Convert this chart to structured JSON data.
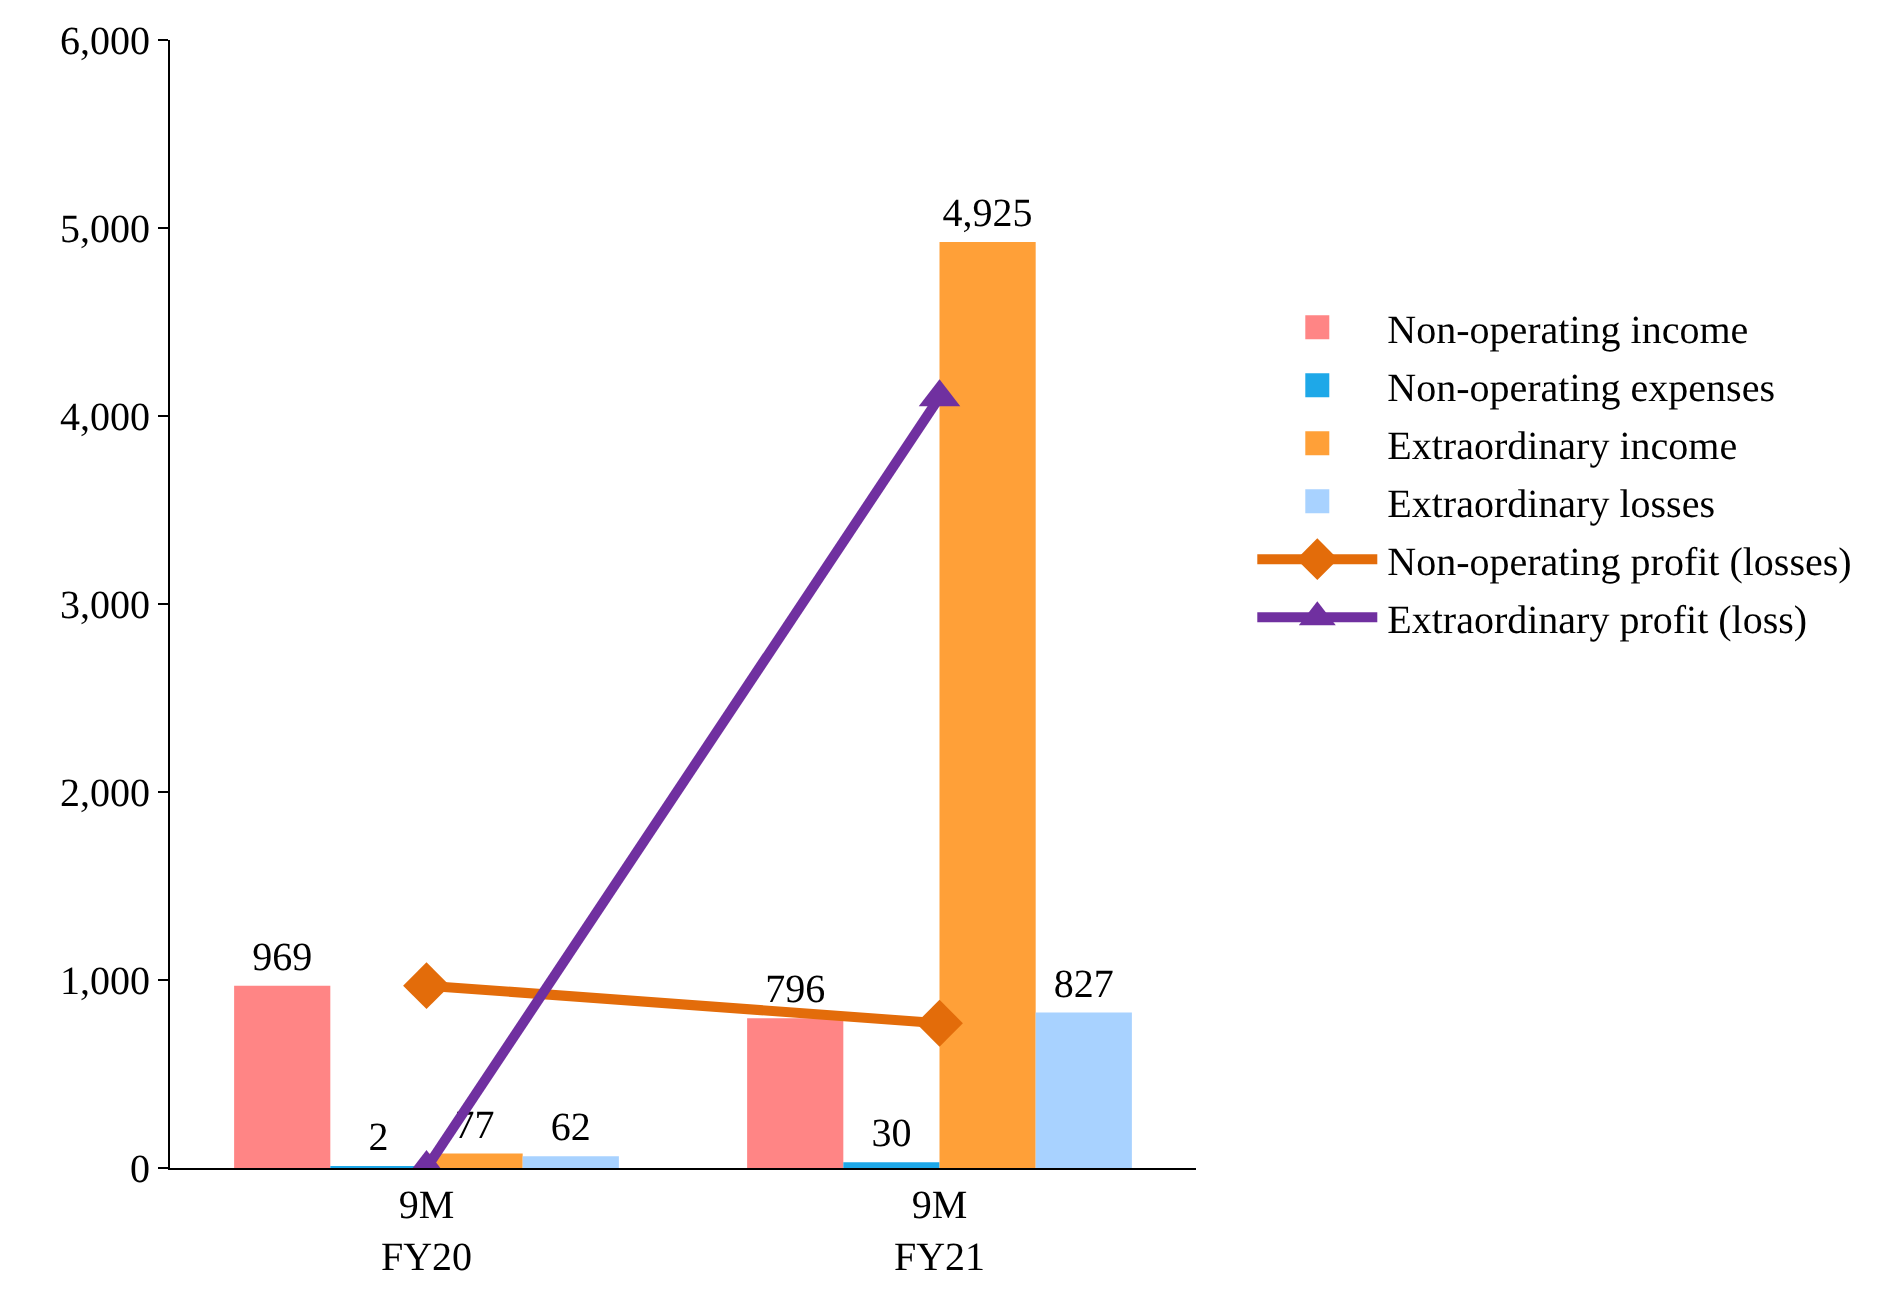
{
  "chart_data": {
    "type": "bar",
    "categories": [
      "9M FY20",
      "9M FY21"
    ],
    "series": [
      {
        "name": "Non-operating income",
        "color": "#ff8585",
        "values": [
          969,
          796
        ],
        "value_labels": [
          "969",
          "796"
        ]
      },
      {
        "name": "Non-operating expenses",
        "color": "#1ea8e8",
        "values": [
          2,
          30
        ],
        "value_labels": [
          "2",
          "30"
        ]
      },
      {
        "name": "Extraordinary income",
        "color": "#ffa038",
        "values": [
          77,
          4925
        ],
        "value_labels": [
          "77",
          "4,925"
        ]
      },
      {
        "name": "Extraordinary losses",
        "color": "#a8d2ff",
        "values": [
          62,
          827
        ],
        "value_labels": [
          "62",
          "827"
        ]
      },
      {
        "name": "Non-operating profit (losses)",
        "type": "line",
        "marker": "diamond",
        "color": "#e36c0a",
        "values": [
          970,
          770
        ]
      },
      {
        "name": "Extraordinary profit (loss)",
        "type": "line",
        "marker": "triangle",
        "color": "#7030a0",
        "values": [
          0,
          4100
        ]
      }
    ],
    "ylim": [
      0,
      6000
    ],
    "yticks": [
      0,
      {
        "value": 1000,
        "label": "1,000"
      },
      {
        "value": 2000,
        "label": "2,000"
      },
      {
        "value": 3000,
        "label": "3,000"
      },
      {
        "value": 4000,
        "label": "4,000"
      },
      {
        "value": 5000,
        "label": "5,000"
      },
      {
        "value": 6000,
        "label": "6,000"
      }
    ],
    "grid": false,
    "legend": "right"
  }
}
